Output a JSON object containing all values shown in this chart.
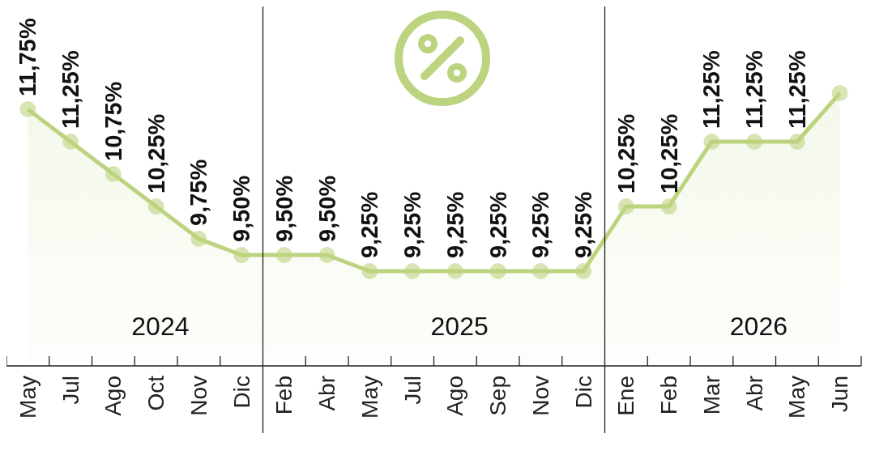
{
  "chart_data": {
    "type": "area",
    "categories": [
      "May",
      "Jul",
      "Ago",
      "Oct",
      "Nov",
      "Dic",
      "Feb",
      "Abr",
      "May",
      "Jul",
      "Ago",
      "Sep",
      "Nov",
      "Dic",
      "Ene",
      "Feb",
      "Mar",
      "Abr",
      "May",
      "Jun"
    ],
    "values": [
      11.75,
      11.25,
      10.75,
      10.25,
      9.75,
      9.5,
      9.5,
      9.5,
      9.25,
      9.25,
      9.25,
      9.25,
      9.25,
      9.25,
      10.25,
      10.25,
      11.25,
      11.25,
      11.25,
      12
    ],
    "value_labels": [
      "11,75%",
      "11,25%",
      "10,75%",
      "10,25%",
      "9,75%",
      "9,50%",
      "9,50%",
      "9,50%",
      "9,25%",
      "9,25%",
      "9,25%",
      "9,25%",
      "9,25%",
      "9,25%",
      "10,25%",
      "10,25%",
      "11,25%",
      "11,25%",
      "11,25%",
      null
    ],
    "color": "#bcd47f",
    "marker": "circle",
    "annotations": [
      "2024",
      "2025",
      "2026"
    ]
  }
}
